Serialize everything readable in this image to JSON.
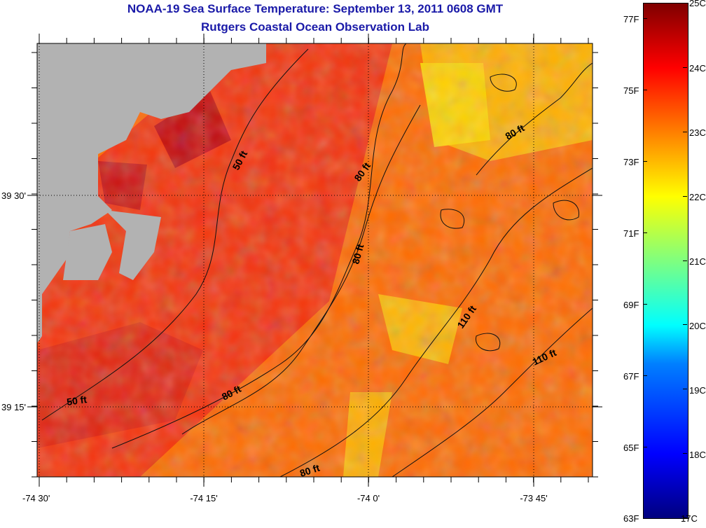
{
  "title": {
    "line1": "NOAA-19 Sea Surface Temperature:  September 13, 2011 0608 GMT",
    "line2": "Rutgers Coastal Ocean Observation Lab"
  },
  "map": {
    "x_ticks": [
      "-74 30'",
      "-74 15'",
      "-74 0'",
      "-73 45'"
    ],
    "y_ticks": [
      "39 30'",
      "39 15'"
    ],
    "contour_labels": [
      "50 ft",
      "80 ft",
      "80 ft",
      "80 ft",
      "80 ft",
      "80 ft",
      "50 ft",
      "110 ft",
      "110 ft"
    ]
  },
  "colorbar": {
    "celsius": [
      "25C",
      "24C",
      "23C",
      "22C",
      "21C",
      "20C",
      "19C",
      "18C",
      "17C"
    ],
    "fahrenheit": [
      "77F",
      "75F",
      "73F",
      "71F",
      "69F",
      "67F",
      "65F",
      "63F"
    ]
  },
  "colors": {
    "land": "#b2b2b2",
    "title": "#1a1aa8",
    "warm_water": "#ff3300",
    "cool_water": "#ffa500"
  }
}
